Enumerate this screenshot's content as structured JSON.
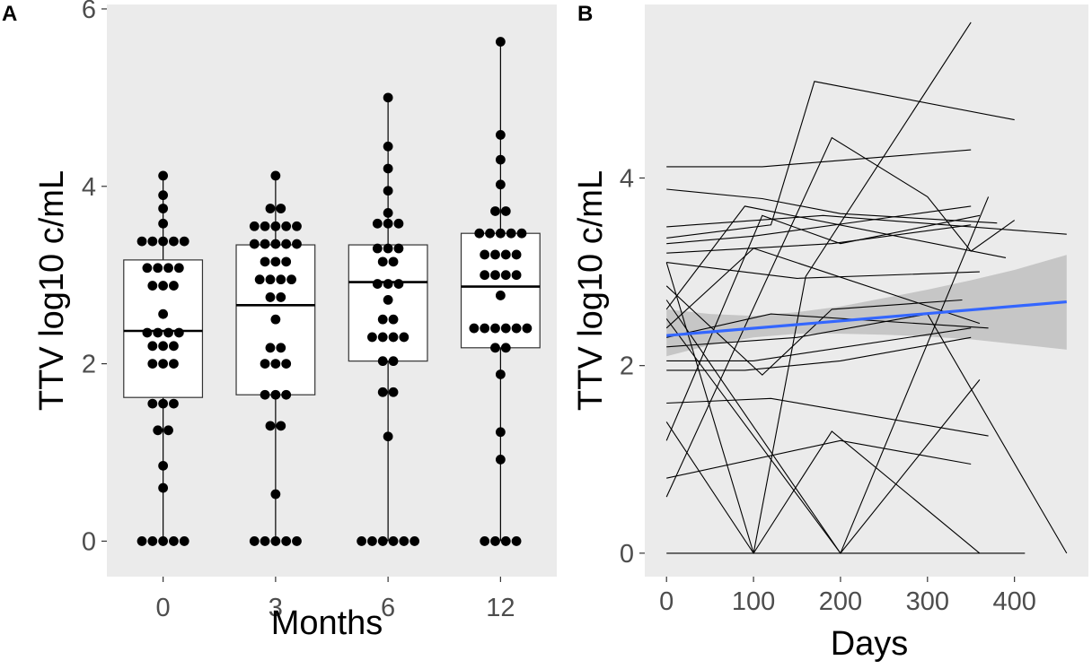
{
  "chart_data": [
    {
      "panel": "A",
      "type": "box",
      "title": "",
      "xlabel": "Months",
      "ylabel": "TTV log10 c/mL",
      "categories": [
        "0",
        "3",
        "6",
        "12"
      ],
      "ylim": [
        -0.4,
        6.05
      ],
      "yticks": [
        0,
        2,
        4,
        6
      ],
      "boxes": [
        {
          "category": "0",
          "whisker_low": 0,
          "q1": 1.62,
          "median": 2.37,
          "q3": 3.17,
          "whisker_high": 4.12
        },
        {
          "category": "3",
          "whisker_low": 0,
          "q1": 1.65,
          "median": 2.66,
          "q3": 3.34,
          "whisker_high": 4.12
        },
        {
          "category": "6",
          "whisker_low": 0,
          "q1": 2.03,
          "median": 2.92,
          "q3": 3.34,
          "whisker_high": 5.0
        },
        {
          "category": "12",
          "whisker_low": 0,
          "q1": 2.18,
          "median": 2.87,
          "q3": 3.47,
          "whisker_high": 5.63
        }
      ],
      "points": [
        {
          "category": "0",
          "values": [
            4.12,
            3.9,
            3.75,
            3.58,
            3.38,
            3.38,
            3.38,
            3.38,
            3.38,
            3.08,
            3.08,
            3.08,
            3.08,
            2.88,
            2.88,
            2.88,
            2.56,
            2.35,
            2.35,
            2.35,
            2.35,
            2.2,
            2.2,
            2.2,
            2.0,
            2.0,
            2.0,
            1.55,
            1.55,
            1.55,
            1.25,
            1.25,
            0.85,
            0.6,
            0,
            0,
            0,
            0,
            0
          ]
        },
        {
          "category": "3",
          "values": [
            4.12,
            3.75,
            3.75,
            3.55,
            3.55,
            3.55,
            3.55,
            3.55,
            3.35,
            3.35,
            3.35,
            3.35,
            3.35,
            3.15,
            3.15,
            3.15,
            2.95,
            2.95,
            2.95,
            2.95,
            2.75,
            2.75,
            2.5,
            2.18,
            2.18,
            2.0,
            2.0,
            2.0,
            1.65,
            1.65,
            1.65,
            1.3,
            1.3,
            0.53,
            0,
            0,
            0,
            0,
            0
          ]
        },
        {
          "category": "6",
          "values": [
            5.0,
            4.45,
            4.2,
            3.95,
            3.7,
            3.58,
            3.58,
            3.58,
            3.3,
            3.3,
            3.3,
            3.15,
            3.15,
            2.9,
            2.9,
            2.9,
            2.72,
            2.5,
            2.5,
            2.3,
            2.3,
            2.3,
            2.3,
            2.03,
            2.03,
            1.68,
            1.68,
            1.18,
            0,
            0,
            0,
            0,
            0,
            0
          ]
        },
        {
          "category": "12",
          "values": [
            5.63,
            4.58,
            4.3,
            4.02,
            3.72,
            3.72,
            3.47,
            3.47,
            3.47,
            3.47,
            3.47,
            3.23,
            3.23,
            3.23,
            3.23,
            3.0,
            3.0,
            3.0,
            3.0,
            2.77,
            2.4,
            2.4,
            2.4,
            2.4,
            2.4,
            2.4,
            2.18,
            2.18,
            1.88,
            1.23,
            0.92,
            0,
            0,
            0,
            0
          ]
        }
      ]
    },
    {
      "panel": "B",
      "type": "line",
      "title": "",
      "xlabel": "Days",
      "ylabel": "TTV log10 c/mL",
      "xlim": [
        -25,
        485
      ],
      "ylim": [
        -0.25,
        5.85
      ],
      "xticks": [
        0,
        100,
        200,
        300,
        400
      ],
      "yticks": [
        0,
        2,
        4
      ],
      "trend": {
        "x0": 0,
        "y0": 2.32,
        "x1": 460,
        "y1": 2.68,
        "color": "#3366ff"
      },
      "ribbon": {
        "x": [
          0,
          50,
          100,
          150,
          200,
          250,
          300,
          350,
          400,
          460
        ],
        "lower": [
          2.1,
          2.22,
          2.3,
          2.34,
          2.34,
          2.33,
          2.31,
          2.28,
          2.23,
          2.17
        ],
        "upper": [
          2.6,
          2.55,
          2.53,
          2.57,
          2.63,
          2.72,
          2.81,
          2.91,
          3.02,
          3.18
        ],
        "color": "#bfbfbf"
      },
      "series": [
        {
          "x": [
            0,
            110,
            350
          ],
          "y": [
            4.12,
            4.12,
            4.3
          ]
        },
        {
          "x": [
            0,
            110,
            200,
            380
          ],
          "y": [
            3.88,
            3.78,
            3.62,
            3.52
          ]
        },
        {
          "x": [
            0,
            180,
            460
          ],
          "y": [
            3.48,
            3.6,
            3.4
          ]
        },
        {
          "x": [
            0,
            120,
            170,
            400
          ],
          "y": [
            3.36,
            3.5,
            5.03,
            4.62
          ]
        },
        {
          "x": [
            0,
            100,
            350
          ],
          "y": [
            3.3,
            3.38,
            3.7
          ]
        },
        {
          "x": [
            0,
            190,
            350
          ],
          "y": [
            3.2,
            3.3,
            3.5
          ]
        },
        {
          "x": [
            0,
            150,
            360
          ],
          "y": [
            3.1,
            2.93,
            3.0
          ]
        },
        {
          "x": [
            0,
            90,
            390
          ],
          "y": [
            2.6,
            3.7,
            3.15
          ]
        },
        {
          "x": [
            0,
            100,
            360
          ],
          "y": [
            2.4,
            3.25,
            2.45
          ]
        },
        {
          "x": [
            0,
            120,
            370
          ],
          "y": [
            2.3,
            2.55,
            2.4
          ]
        },
        {
          "x": [
            0,
            100,
            350
          ],
          "y": [
            2.05,
            2.05,
            2.4
          ]
        },
        {
          "x": [
            0,
            90,
            200,
            350
          ],
          "y": [
            1.95,
            1.95,
            2.05,
            2.3
          ]
        },
        {
          "x": [
            0,
            120,
            370
          ],
          "y": [
            1.6,
            1.65,
            1.25
          ]
        },
        {
          "x": [
            0,
            110,
            200,
            360
          ],
          "y": [
            1.2,
            3.6,
            3.3,
            3.6
          ]
        },
        {
          "x": [
            0,
            190,
            300,
            350,
            400
          ],
          "y": [
            0.6,
            4.43,
            3.8,
            3.22,
            3.55
          ]
        },
        {
          "x": [
            0,
            110,
            190,
            340
          ],
          "y": [
            2.85,
            1.9,
            2.6,
            2.7
          ]
        },
        {
          "x": [
            0,
            200,
            360
          ],
          "y": [
            2.5,
            0.0,
            1.85
          ]
        },
        {
          "x": [
            0,
            100,
            190,
            360
          ],
          "y": [
            1.4,
            0.0,
            1.3,
            0.0
          ]
        },
        {
          "x": [
            0,
            200,
            350
          ],
          "y": [
            0.8,
            1.2,
            0.95
          ]
        },
        {
          "x": [
            0,
            100,
            160,
            350
          ],
          "y": [
            3.1,
            0.0,
            2.95,
            5.66
          ]
        },
        {
          "x": [
            0,
            200,
            370
          ],
          "y": [
            2.7,
            0.0,
            3.8
          ]
        },
        {
          "x": [
            0,
            150,
            300,
            460
          ],
          "y": [
            2.2,
            2.3,
            2.55,
            0.0
          ]
        },
        {
          "x": [
            0,
            412
          ],
          "y": [
            0,
            0
          ]
        }
      ]
    }
  ],
  "labels": {
    "panel_a": "A",
    "panel_b": "B"
  },
  "colors": {
    "panel_bg": "#ebebeb",
    "trend": "#3366ff",
    "ribbon": "#bfbfbf"
  }
}
